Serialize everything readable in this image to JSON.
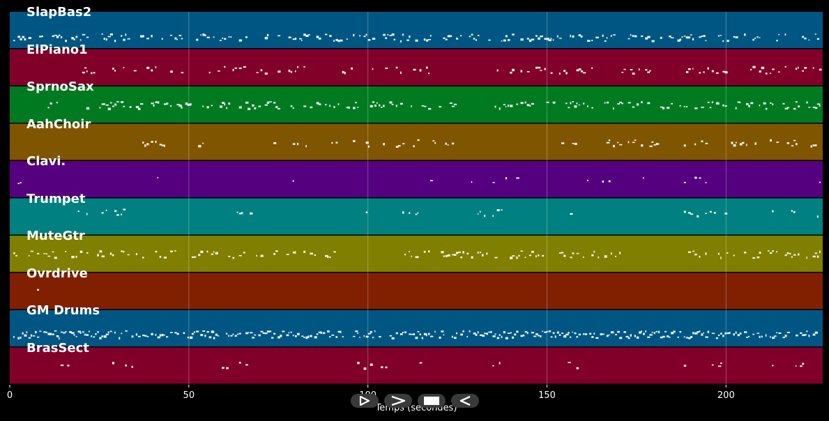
{
  "axis": {
    "xlabel": "Temps (secondes)",
    "xmin": 0,
    "xmax": 227,
    "ticks": [
      0,
      50,
      100,
      150,
      200
    ]
  },
  "tracks": [
    {
      "name": "SlapBas2",
      "color": "#005683"
    },
    {
      "name": "ElPiano1",
      "color": "#80002A"
    },
    {
      "name": "SprnoSax",
      "color": "#007A20"
    },
    {
      "name": "AahChoir",
      "color": "#805500"
    },
    {
      "name": "Clavi.",
      "color": "#55007F"
    },
    {
      "name": "Trumpet",
      "color": "#008080"
    },
    {
      "name": "MuteGtr",
      "color": "#807F00"
    },
    {
      "name": "Ovrdrive",
      "color": "#802000"
    },
    {
      "name": "GM Drums",
      "color": "#005683"
    },
    {
      "name": "BrasSect",
      "color": "#80002A"
    }
  ],
  "controls": {
    "play_icon": "play-outline-icon",
    "next_icon": "chevron-right-icon",
    "stop_icon": "stop-icon",
    "back_icon": "play-reverse-outline-icon"
  }
}
